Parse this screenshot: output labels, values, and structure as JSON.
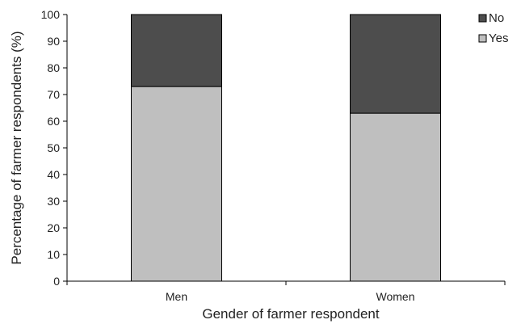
{
  "chart_data": {
    "type": "bar",
    "stacked": true,
    "categories": [
      "Men",
      "Women"
    ],
    "series": [
      {
        "name": "Yes",
        "values": [
          73,
          63
        ],
        "color": "#bfbfbf"
      },
      {
        "name": "No",
        "values": [
          27,
          37
        ],
        "color": "#4d4d4d"
      }
    ],
    "xlabel": "Gender of farmer respondent",
    "ylabel": "Percentage of farmer respondents (%)",
    "ylim": [
      0,
      100
    ],
    "yticks": [
      0,
      10,
      20,
      30,
      40,
      50,
      60,
      70,
      80,
      90,
      100
    ],
    "legend_position": "top-right",
    "legend_order": [
      "No",
      "Yes"
    ],
    "grid": false
  }
}
